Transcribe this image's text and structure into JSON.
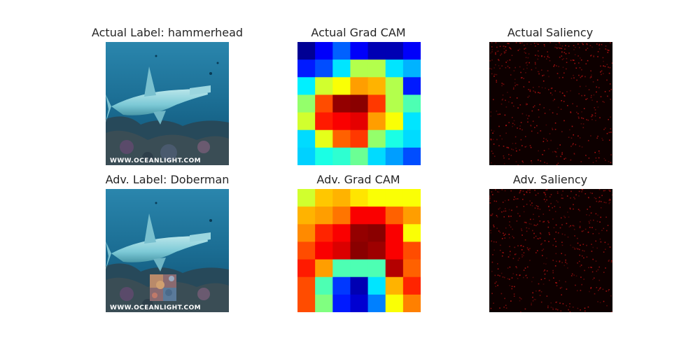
{
  "figure": {
    "titles": {
      "actual_label": "Actual Label: hammerhead",
      "actual_gradcam": "Actual Grad CAM",
      "actual_saliency": "Actual Saliency",
      "adv_label": "Adv. Label: Doberman",
      "adv_gradcam": "Adv. Grad CAM",
      "adv_saliency": "Adv. Saliency"
    },
    "watermark": "WWW.OCEANLIGHT.COM",
    "colors": {
      "background": "#ffffff",
      "title_text": "#262626",
      "water_dark": "#0e4f70",
      "water_light": "#4aa6c4",
      "shark": "#8fcfd8",
      "saliency_bg": "#0d0000",
      "saliency_dot": "#b01010"
    },
    "icons": {
      "shark_photo": "hammerhead-shark-photo",
      "adv_patch": "adversarial-patch"
    }
  },
  "gradcam": {
    "colormap": "jet",
    "actual": [
      [
        0.02,
        0.12,
        0.22,
        0.12,
        0.05,
        0.05,
        0.12
      ],
      [
        0.15,
        0.2,
        0.35,
        0.55,
        0.55,
        0.35,
        0.3
      ],
      [
        0.36,
        0.58,
        0.62,
        0.72,
        0.7,
        0.55,
        0.15
      ],
      [
        0.52,
        0.8,
        0.98,
        0.99,
        0.82,
        0.55,
        0.45
      ],
      [
        0.58,
        0.85,
        0.88,
        0.9,
        0.72,
        0.62,
        0.35
      ],
      [
        0.34,
        0.6,
        0.78,
        0.82,
        0.52,
        0.4,
        0.34
      ],
      [
        0.33,
        0.4,
        0.42,
        0.48,
        0.34,
        0.28,
        0.2
      ]
    ],
    "adv": [
      [
        0.58,
        0.68,
        0.7,
        0.65,
        0.62,
        0.62,
        0.62
      ],
      [
        0.7,
        0.72,
        0.76,
        0.88,
        0.88,
        0.78,
        0.72
      ],
      [
        0.74,
        0.84,
        0.88,
        0.98,
        0.99,
        0.88,
        0.62
      ],
      [
        0.8,
        0.88,
        0.91,
        0.99,
        0.97,
        0.88,
        0.8
      ],
      [
        0.85,
        0.72,
        0.45,
        0.45,
        0.45,
        0.95,
        0.78
      ],
      [
        0.8,
        0.45,
        0.18,
        0.05,
        0.35,
        0.7,
        0.84
      ],
      [
        0.8,
        0.5,
        0.15,
        0.08,
        0.25,
        0.62,
        0.75
      ]
    ]
  }
}
